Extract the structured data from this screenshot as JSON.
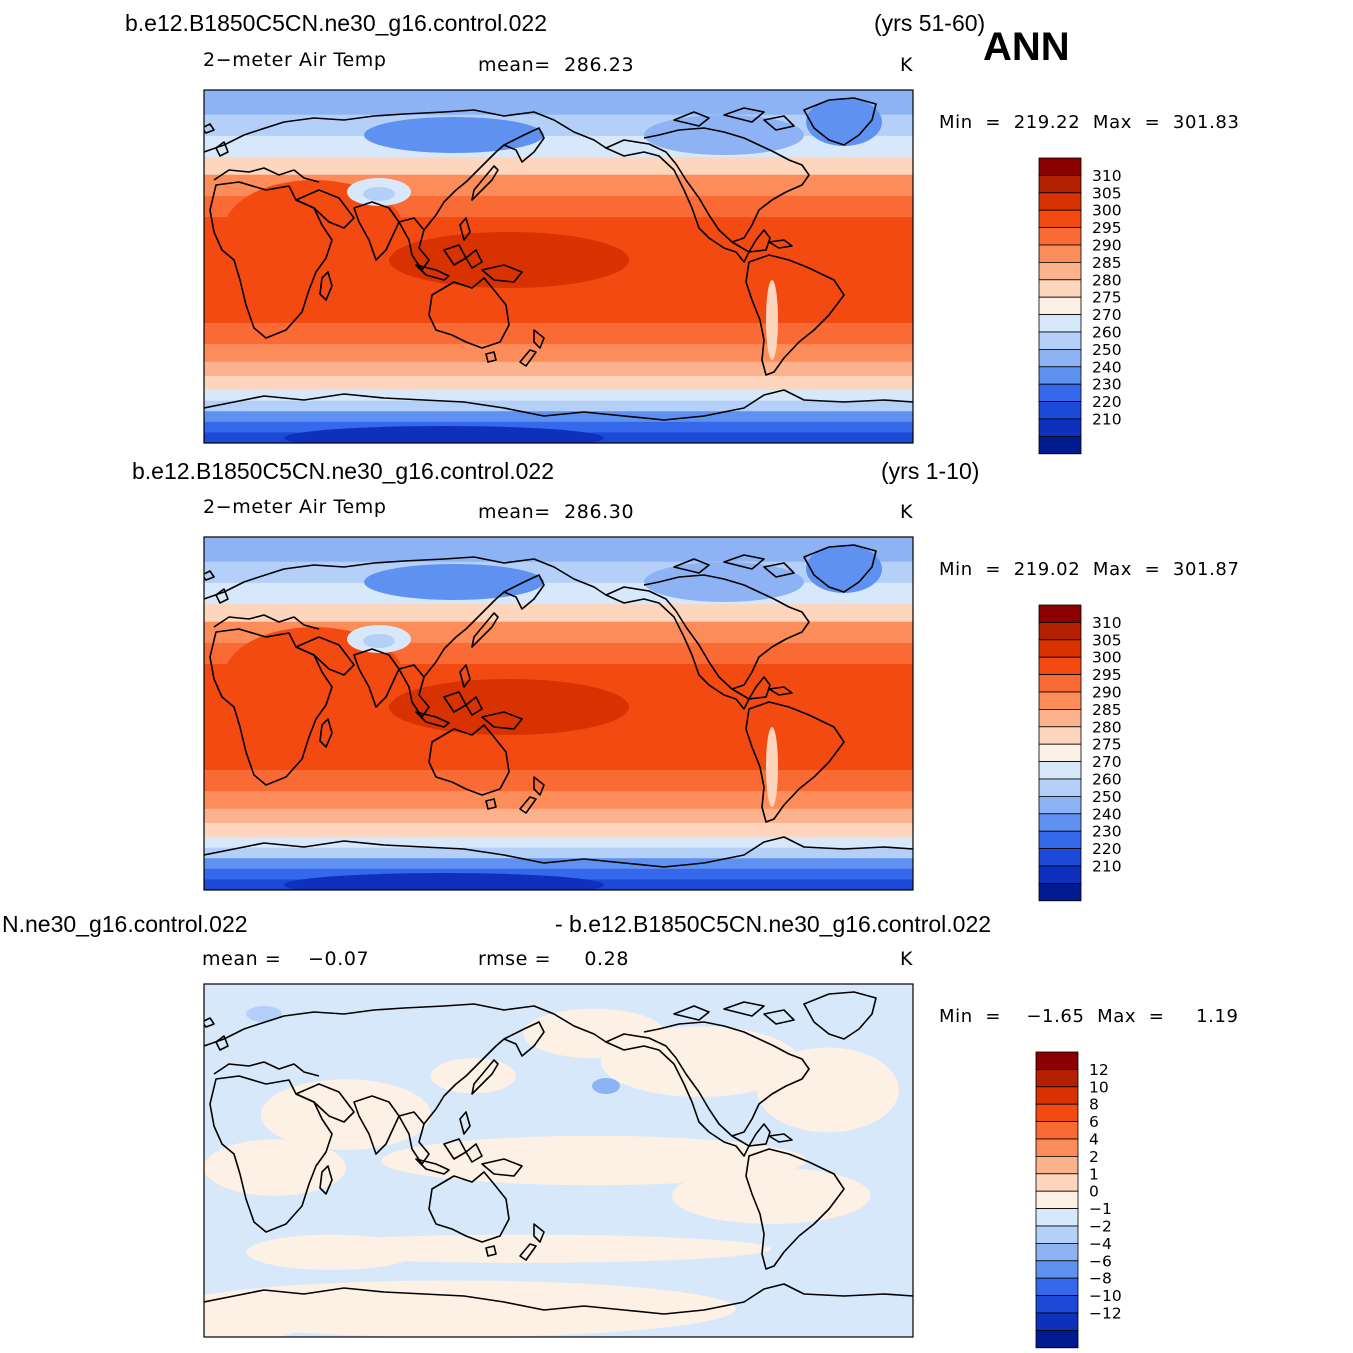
{
  "season": "ANN",
  "units": "K",
  "panels": [
    {
      "case_name": "b.e12.B1850C5CN.ne30_g16.control.022",
      "years": "(yrs 51-60)",
      "variable": "2−meter Air Temp",
      "mean_text": "mean=  286.23",
      "units": "K",
      "minmax_text": "Min  =  219.22  Max  =  301.83",
      "colorbar": {
        "labels": [
          "310",
          "305",
          "300",
          "295",
          "290",
          "285",
          "280",
          "275",
          "270",
          "260",
          "250",
          "240",
          "230",
          "220",
          "210"
        ],
        "colors": [
          "#8b0000",
          "#b22000",
          "#d83200",
          "#f24a10",
          "#fa6a35",
          "#fc8d5b",
          "#fcb28c",
          "#fdd6bd",
          "#fdf0e4",
          "#d8e8fb",
          "#b5d0f8",
          "#8db3f4",
          "#5f91f0",
          "#3568ea",
          "#1c49d8",
          "#0d30bd",
          "#001a8f"
        ]
      },
      "field_kind": "temperature"
    },
    {
      "case_name": "b.e12.B1850C5CN.ne30_g16.control.022",
      "years": "(yrs 1-10)",
      "variable": "2−meter Air Temp",
      "mean_text": "mean=  286.30",
      "units": "K",
      "minmax_text": "Min  =  219.02  Max  =  301.87",
      "colorbar": {
        "labels": [
          "310",
          "305",
          "300",
          "295",
          "290",
          "285",
          "280",
          "275",
          "270",
          "260",
          "250",
          "240",
          "230",
          "220",
          "210"
        ],
        "colors": [
          "#8b0000",
          "#b22000",
          "#d83200",
          "#f24a10",
          "#fa6a35",
          "#fc8d5b",
          "#fcb28c",
          "#fdd6bd",
          "#fdf0e4",
          "#d8e8fb",
          "#b5d0f8",
          "#8db3f4",
          "#5f91f0",
          "#3568ea",
          "#1c49d8",
          "#0d30bd",
          "#001a8f"
        ]
      },
      "field_kind": "temperature"
    },
    {
      "case_left": "N.ne30_g16.control.022",
      "case_right": "- b.e12.B1850C5CN.ne30_g16.control.022",
      "mean_text": "mean =    −0.07",
      "rmse_text": "rmse =     0.28",
      "units": "K",
      "minmax_text": "Min  =    −1.65  Max  =     1.19",
      "colorbar": {
        "labels": [
          "12",
          "10",
          "8",
          "6",
          "4",
          "2",
          "1",
          "0",
          "−1",
          "−2",
          "−4",
          "−6",
          "−8",
          "−10",
          "−12"
        ],
        "colors": [
          "#8b0000",
          "#b22000",
          "#d83200",
          "#f24a10",
          "#fa6a35",
          "#fc8d5b",
          "#fcb28c",
          "#fdd6bd",
          "#fdf0e4",
          "#d8e8fb",
          "#b5d0f8",
          "#8db3f4",
          "#5f91f0",
          "#3568ea",
          "#1c49d8",
          "#0d30bd",
          "#001a8f"
        ]
      },
      "field_kind": "difference"
    }
  ]
}
